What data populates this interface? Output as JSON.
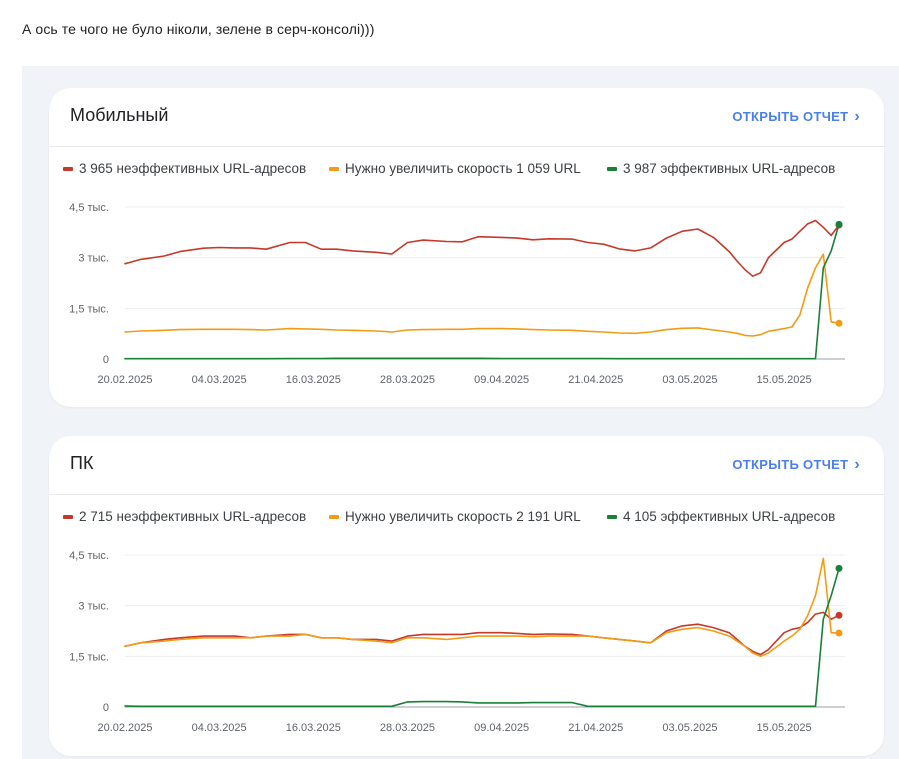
{
  "post": {
    "text": "А ось те чого не було ніколи, зелене в серч-консолі)))"
  },
  "colors": {
    "poor": "#c5392a",
    "needs": "#f29c15",
    "good": "#188038",
    "link": "#4a80e8",
    "panel_bg": "#f0f3f8"
  },
  "cards": [
    {
      "title": "Мобильный",
      "link": {
        "label": "ОТКРЫТЬ ОТЧЕТ",
        "icon": "chevron-right-icon"
      },
      "legend": [
        {
          "label": "3 965 неэффективных URL-адресов"
        },
        {
          "label": "Нужно увеличить скорость 1 059 URL"
        },
        {
          "label": "3 987 эффективных URL-адресов"
        }
      ]
    },
    {
      "title": "ПК",
      "link": {
        "label": "ОТКРЫТЬ ОТЧЕТ",
        "icon": "chevron-right-icon"
      },
      "legend": [
        {
          "label": "2 715 неэффективных URL-адресов"
        },
        {
          "label": "Нужно увеличить скорость 2 191 URL"
        },
        {
          "label": "4 105 эффективных URL-адресов"
        }
      ]
    }
  ],
  "chart_data": [
    {
      "type": "line",
      "title": "Мобильный",
      "y_ticks": [
        {
          "value": 0,
          "label": "0"
        },
        {
          "value": 1500,
          "label": "1,5 тыс."
        },
        {
          "value": 3000,
          "label": "3 тыс."
        },
        {
          "value": 4500,
          "label": "4,5 тыс."
        }
      ],
      "ylim": [
        0,
        4500
      ],
      "x_ticks": [
        "20.02.2025",
        "04.03.2025",
        "16.03.2025",
        "28.03.2025",
        "09.04.2025",
        "21.04.2025",
        "03.05.2025",
        "15.05.2025"
      ],
      "x": [
        "2025-02-20",
        "2025-02-22",
        "2025-02-25",
        "2025-02-27",
        "2025-03-02",
        "2025-03-04",
        "2025-03-06",
        "2025-03-08",
        "2025-03-10",
        "2025-03-13",
        "2025-03-15",
        "2025-03-17",
        "2025-03-19",
        "2025-03-21",
        "2025-03-24",
        "2025-03-26",
        "2025-03-28",
        "2025-03-30",
        "2025-04-02",
        "2025-04-04",
        "2025-04-06",
        "2025-04-09",
        "2025-04-11",
        "2025-04-13",
        "2025-04-15",
        "2025-04-18",
        "2025-04-20",
        "2025-04-22",
        "2025-04-24",
        "2025-04-26",
        "2025-04-28",
        "2025-04-30",
        "2025-05-02",
        "2025-05-04",
        "2025-05-06",
        "2025-05-08",
        "2025-05-09",
        "2025-05-10",
        "2025-05-11",
        "2025-05-12",
        "2025-05-13",
        "2025-05-15",
        "2025-05-16",
        "2025-05-17",
        "2025-05-18",
        "2025-05-19",
        "2025-05-20",
        "2025-05-21",
        "2025-05-22"
      ],
      "series": [
        {
          "name": "3 965 неэффективных URL-адресов",
          "color": "#c5392a",
          "values": [
            2820,
            2950,
            3050,
            3180,
            3280,
            3300,
            3290,
            3290,
            3250,
            3450,
            3450,
            3250,
            3250,
            3200,
            3160,
            3110,
            3450,
            3520,
            3480,
            3470,
            3620,
            3600,
            3580,
            3530,
            3560,
            3550,
            3450,
            3400,
            3260,
            3200,
            3290,
            3580,
            3780,
            3850,
            3600,
            3180,
            2900,
            2650,
            2450,
            2550,
            3000,
            3450,
            3550,
            3780,
            4000,
            4100,
            3900,
            3660,
            3965
          ]
        },
        {
          "name": "Нужно увеличить скорость 1 059 URL",
          "color": "#f29c15",
          "values": [
            800,
            830,
            850,
            870,
            880,
            880,
            880,
            870,
            860,
            900,
            890,
            880,
            860,
            850,
            830,
            800,
            860,
            870,
            880,
            880,
            900,
            900,
            890,
            870,
            860,
            850,
            820,
            800,
            770,
            760,
            800,
            870,
            910,
            920,
            860,
            800,
            760,
            700,
            680,
            720,
            820,
            900,
            950,
            1300,
            2100,
            2700,
            3100,
            1100,
            1059
          ]
        },
        {
          "name": "3 987 эффективных URL-адресов",
          "color": "#188038",
          "values": [
            10,
            10,
            10,
            10,
            10,
            10,
            10,
            10,
            10,
            15,
            15,
            15,
            20,
            20,
            20,
            20,
            20,
            20,
            20,
            20,
            20,
            15,
            15,
            15,
            15,
            15,
            15,
            15,
            10,
            10,
            10,
            10,
            10,
            10,
            10,
            10,
            10,
            10,
            10,
            10,
            10,
            10,
            10,
            10,
            10,
            10,
            2700,
            3200,
            3987
          ]
        }
      ]
    },
    {
      "type": "line",
      "title": "ПК",
      "y_ticks": [
        {
          "value": 0,
          "label": "0"
        },
        {
          "value": 1500,
          "label": "1,5 тыс."
        },
        {
          "value": 3000,
          "label": "3 тыс."
        },
        {
          "value": 4500,
          "label": "4,5 тыс."
        }
      ],
      "ylim": [
        0,
        4500
      ],
      "x_ticks": [
        "20.02.2025",
        "04.03.2025",
        "16.03.2025",
        "28.03.2025",
        "09.04.2025",
        "21.04.2025",
        "03.05.2025",
        "15.05.2025"
      ],
      "x": [
        "2025-02-20",
        "2025-02-22",
        "2025-02-25",
        "2025-02-27",
        "2025-03-02",
        "2025-03-04",
        "2025-03-06",
        "2025-03-08",
        "2025-03-10",
        "2025-03-13",
        "2025-03-15",
        "2025-03-17",
        "2025-03-19",
        "2025-03-21",
        "2025-03-24",
        "2025-03-26",
        "2025-03-28",
        "2025-03-30",
        "2025-04-02",
        "2025-04-04",
        "2025-04-06",
        "2025-04-09",
        "2025-04-11",
        "2025-04-13",
        "2025-04-15",
        "2025-04-18",
        "2025-04-20",
        "2025-04-22",
        "2025-04-24",
        "2025-04-26",
        "2025-04-28",
        "2025-04-30",
        "2025-05-02",
        "2025-05-04",
        "2025-05-06",
        "2025-05-08",
        "2025-05-09",
        "2025-05-10",
        "2025-05-11",
        "2025-05-12",
        "2025-05-13",
        "2025-05-15",
        "2025-05-16",
        "2025-05-17",
        "2025-05-18",
        "2025-05-19",
        "2025-05-20",
        "2025-05-21",
        "2025-05-22"
      ],
      "series": [
        {
          "name": "2 715 неэффективных URL-адресов",
          "color": "#c5392a",
          "values": [
            1800,
            1900,
            2000,
            2050,
            2100,
            2100,
            2100,
            2050,
            2100,
            2150,
            2150,
            2050,
            2050,
            2000,
            2000,
            1950,
            2100,
            2150,
            2150,
            2150,
            2200,
            2200,
            2180,
            2150,
            2160,
            2150,
            2100,
            2050,
            2000,
            1950,
            1900,
            2250,
            2400,
            2450,
            2350,
            2200,
            2000,
            1800,
            1650,
            1550,
            1700,
            2200,
            2300,
            2350,
            2500,
            2750,
            2800,
            2600,
            2715
          ]
        },
        {
          "name": "Нужно увеличить скорость 2 191 URL",
          "color": "#f29c15",
          "values": [
            1800,
            1900,
            1950,
            2000,
            2050,
            2050,
            2050,
            2050,
            2100,
            2100,
            2150,
            2050,
            2050,
            2000,
            1950,
            1900,
            2050,
            2050,
            2000,
            2050,
            2100,
            2100,
            2100,
            2080,
            2100,
            2100,
            2100,
            2050,
            2000,
            1950,
            1900,
            2200,
            2300,
            2350,
            2250,
            2100,
            1950,
            1800,
            1600,
            1500,
            1600,
            1950,
            2100,
            2300,
            2700,
            3300,
            4400,
            2200,
            2191
          ]
        },
        {
          "name": "4 105 эффективных URL-адресов",
          "color": "#188038",
          "values": [
            30,
            20,
            20,
            20,
            20,
            20,
            20,
            20,
            20,
            20,
            20,
            20,
            20,
            20,
            20,
            20,
            150,
            160,
            160,
            150,
            120,
            120,
            120,
            130,
            130,
            130,
            20,
            20,
            20,
            20,
            20,
            20,
            20,
            20,
            20,
            20,
            20,
            20,
            20,
            20,
            20,
            20,
            20,
            20,
            20,
            20,
            2600,
            3300,
            4105
          ]
        }
      ]
    }
  ]
}
